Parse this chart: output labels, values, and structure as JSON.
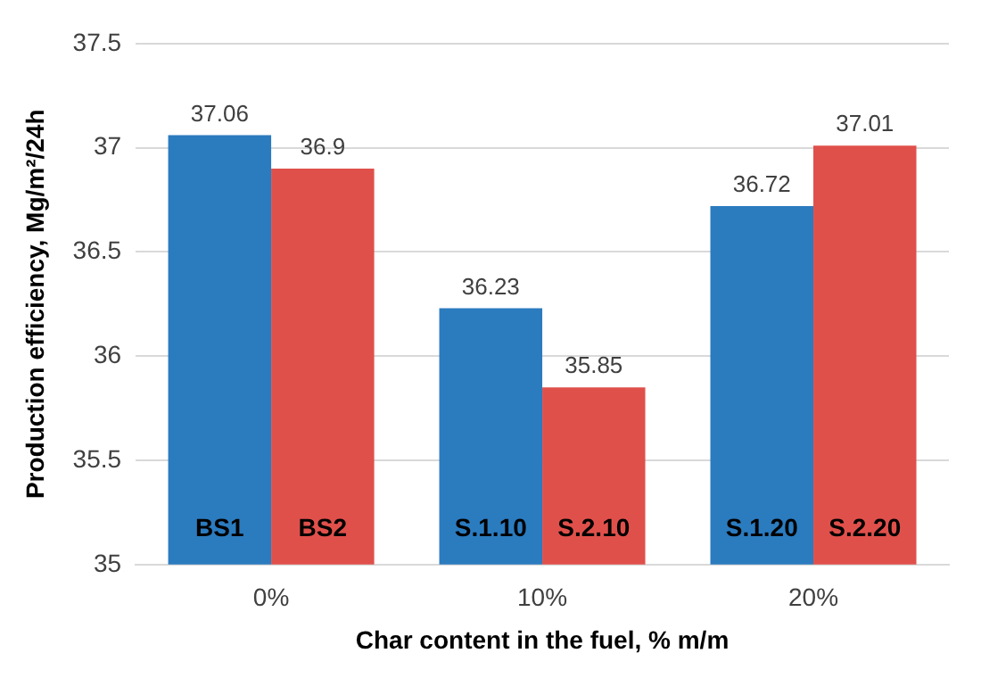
{
  "chart_data": {
    "type": "bar",
    "xlabel": "Char content in the fuel, % m/m",
    "ylabel": "Production efficiency, Mg/m²/24h",
    "categories": [
      "0%",
      "10%",
      "20%"
    ],
    "series": [
      {
        "color": "#2b7bbf",
        "values": [
          37.06,
          36.23,
          36.72
        ]
      },
      {
        "color": "#e0504b",
        "values": [
          36.9,
          35.85,
          37.01
        ]
      }
    ],
    "ylim": [
      35,
      37.5
    ],
    "yticks": [
      35,
      35.5,
      36,
      36.5,
      37,
      37.5
    ],
    "grid": "y",
    "data_labels": true,
    "legend": false,
    "annotations": [
      {
        "text": "BS1",
        "x": "0%",
        "y": 35.1
      },
      {
        "text": "BS2",
        "x": "0%",
        "y": 35.1
      },
      {
        "text": "S.1.10",
        "x": "10%",
        "y": 35.1
      },
      {
        "text": "S.2.10",
        "x": "10%",
        "y": 35.1
      },
      {
        "text": "S.1.20",
        "x": "20%",
        "y": 35.1
      },
      {
        "text": "S.2.20",
        "x": "20%",
        "y": 35.1
      }
    ]
  }
}
